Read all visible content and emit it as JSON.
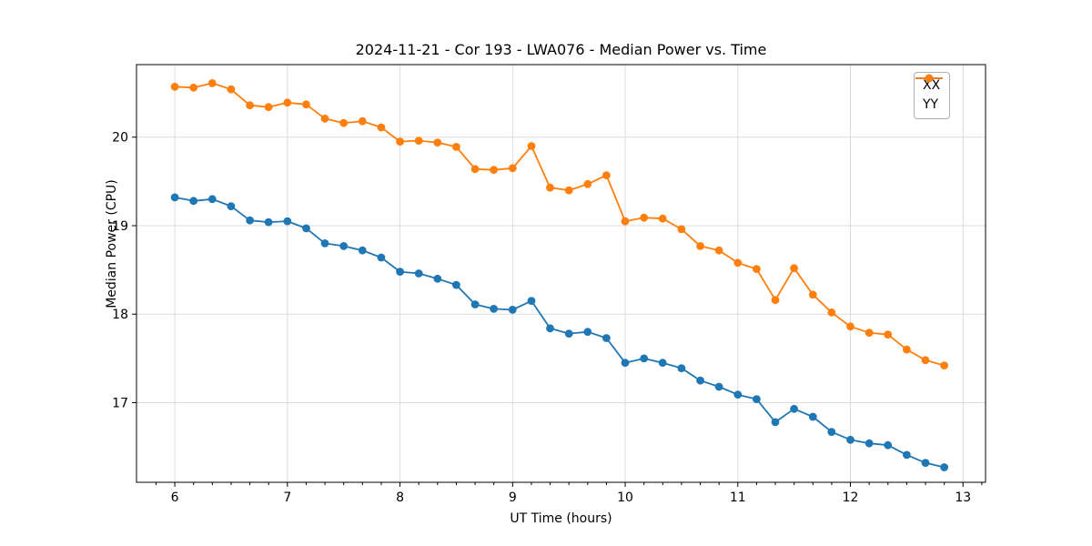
{
  "chart_data": {
    "type": "line",
    "title": "2024-11-21 - Cor 193 - LWA076 - Median Power vs. Time",
    "xlabel": "UT Time (hours)",
    "ylabel": "Median Power (CPU)",
    "xlim": [
      5.66,
      13.2
    ],
    "ylim": [
      16.1,
      20.82
    ],
    "x_ticks": [
      6,
      7,
      8,
      9,
      10,
      11,
      12,
      13
    ],
    "y_ticks": [
      17,
      18,
      19,
      20
    ],
    "x_minor_step": 0.16667,
    "grid": true,
    "grid_color": "#dcdcdc",
    "legend_position": "upper right",
    "marker": "circle",
    "x": [
      6.0,
      6.167,
      6.333,
      6.5,
      6.667,
      6.833,
      7.0,
      7.167,
      7.333,
      7.5,
      7.667,
      7.833,
      8.0,
      8.167,
      8.333,
      8.5,
      8.667,
      8.833,
      9.0,
      9.167,
      9.333,
      9.5,
      9.667,
      9.833,
      10.0,
      10.167,
      10.333,
      10.5,
      10.667,
      10.833,
      11.0,
      11.167,
      11.333,
      11.5,
      11.667,
      11.833,
      12.0,
      12.167,
      12.333,
      12.5,
      12.667,
      12.833
    ],
    "series": [
      {
        "name": "XX",
        "color": "#1f77b4",
        "values": [
          19.32,
          19.28,
          19.3,
          19.22,
          19.06,
          19.04,
          19.05,
          18.97,
          18.8,
          18.77,
          18.72,
          18.64,
          18.48,
          18.46,
          18.4,
          18.33,
          18.11,
          18.06,
          18.05,
          18.15,
          17.84,
          17.78,
          17.8,
          17.73,
          17.45,
          17.5,
          17.45,
          17.39,
          17.25,
          17.18,
          17.09,
          17.04,
          16.78,
          16.93,
          16.84,
          16.67,
          16.58,
          16.54,
          16.52,
          16.41,
          16.32,
          16.27
        ]
      },
      {
        "name": "YY",
        "color": "#ff7f0e",
        "values": [
          20.57,
          20.56,
          20.61,
          20.54,
          20.36,
          20.34,
          20.39,
          20.37,
          20.21,
          20.16,
          20.18,
          20.11,
          19.95,
          19.96,
          19.94,
          19.89,
          19.64,
          19.63,
          19.65,
          19.9,
          19.43,
          19.4,
          19.47,
          19.57,
          19.05,
          19.09,
          19.08,
          18.96,
          18.77,
          18.72,
          18.58,
          18.51,
          18.16,
          18.52,
          18.22,
          18.02,
          17.86,
          17.79,
          17.77,
          17.6,
          17.48,
          17.42
        ]
      }
    ]
  }
}
